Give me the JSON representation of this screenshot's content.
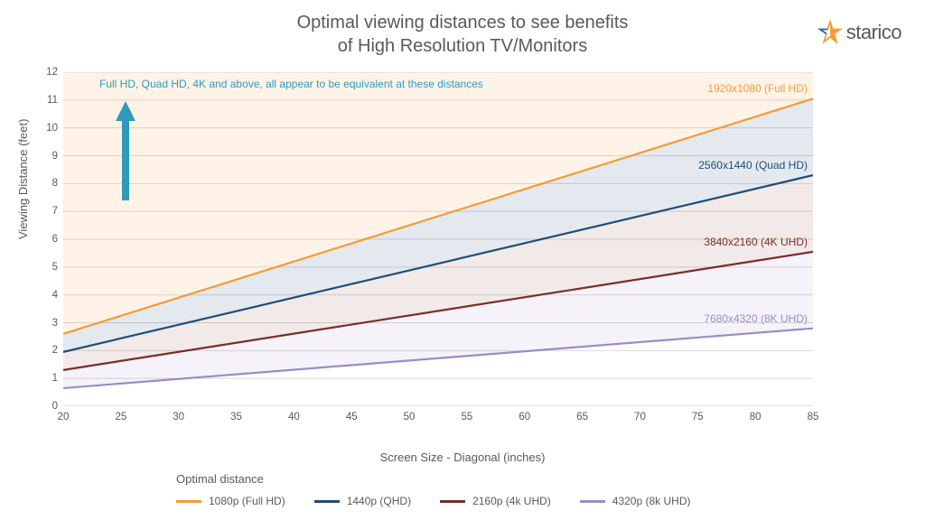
{
  "title_line1": "Optimal viewing distances to see benefits",
  "title_line2": "of High Resolution TV/Monitors",
  "logo_text": "starico",
  "logo_star_fill": "#f39c35",
  "logo_star_stroke": "#1f6fb2",
  "annotation_text": "Full HD, Quad HD, 4K and above, all appear to be equivalent at these distances",
  "annotation_color": "#2e9bbd",
  "arrow_color": "#2e9bbd",
  "chart": {
    "type": "line",
    "background_color": "#ffffff",
    "grid_color": "#d9d9d9",
    "axis_color": "#bfbfbf",
    "xlabel": "Screen Size - Diagonal (inches)",
    "ylabel": "Viewing Distance (feet)",
    "xlim": [
      20,
      85
    ],
    "ylim": [
      0,
      12
    ],
    "xticks": [
      20,
      25,
      30,
      35,
      40,
      45,
      50,
      55,
      60,
      65,
      70,
      75,
      80,
      85
    ],
    "yticks": [
      0,
      1,
      2,
      3,
      4,
      5,
      6,
      7,
      8,
      9,
      10,
      11,
      12
    ],
    "label_fontsize": 13,
    "tick_fontsize": 11.5,
    "line_width": 2.2,
    "series": [
      {
        "name": "1080p (Full HD)",
        "color": "#f39c35",
        "fill_to": "top",
        "fill_opacity": 0.12,
        "label_right": "1920x1080 (Full HD)",
        "x": [
          20,
          85
        ],
        "y": [
          2.6,
          11.05
        ]
      },
      {
        "name": "1440p (QHD)",
        "color": "#1f4e79",
        "fill_to": "prev",
        "fill_opacity": 0.12,
        "label_right": "2560x1440 (Quad HD)",
        "x": [
          20,
          85
        ],
        "y": [
          1.95,
          8.3
        ]
      },
      {
        "name": "2160p (4k UHD)",
        "color": "#7b2d26",
        "fill_to": "prev",
        "fill_opacity": 0.1,
        "label_right": "3840x2160 (4K UHD)",
        "x": [
          20,
          85
        ],
        "y": [
          1.3,
          5.55
        ]
      },
      {
        "name": "4320p (8k UHD)",
        "color": "#9b8bc9",
        "fill_to": "prev",
        "fill_opacity": 0.1,
        "label_right": "7680x4320 (8K UHD)",
        "x": [
          20,
          85
        ],
        "y": [
          0.65,
          2.8
        ]
      }
    ]
  },
  "legend_title": "Optimal distance"
}
